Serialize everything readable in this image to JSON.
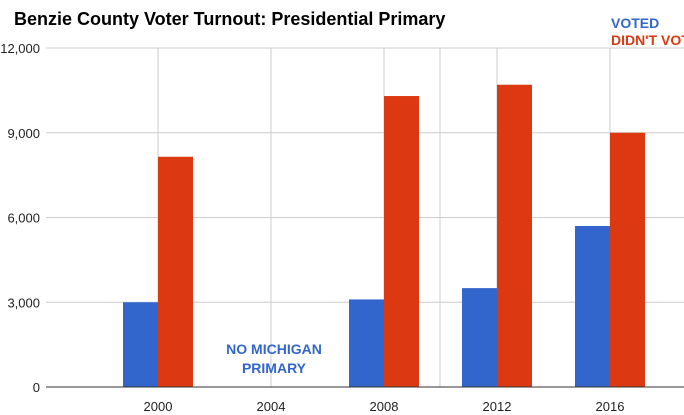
{
  "chart_data": {
    "type": "bar",
    "title": "Benzie County Voter Turnout: Presidential Primary",
    "categories": [
      "2000",
      "2004",
      "2008",
      "2012",
      "2016"
    ],
    "series": [
      {
        "name": "VOTED",
        "color": "#3366cc",
        "values": [
          3000,
          null,
          3100,
          3500,
          5700
        ]
      },
      {
        "name": "DIDN'T VOTE",
        "color": "#dc3912",
        "values": [
          8150,
          null,
          10300,
          10700,
          9000
        ]
      }
    ],
    "ylim": [
      0,
      12000
    ],
    "yticks": [
      "0",
      "3,000",
      "6,000",
      "9,000",
      "12,000"
    ],
    "ytick_values": [
      0,
      3000,
      6000,
      9000,
      12000
    ],
    "grid": true,
    "legend_position": "top-right",
    "annotation": {
      "category": "2004",
      "lines": [
        "NO MICHIGAN",
        "PRIMARY"
      ],
      "color": "#3366cc"
    }
  }
}
